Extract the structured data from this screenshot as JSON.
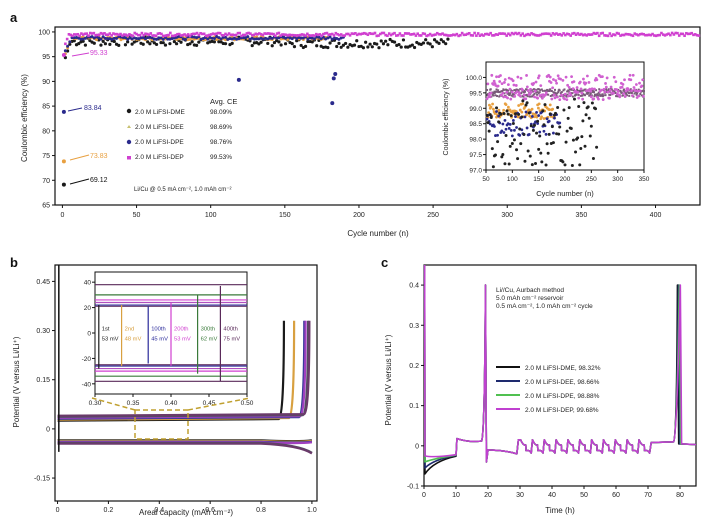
{
  "panels": {
    "a": {
      "letter": "a"
    },
    "b": {
      "letter": "b"
    },
    "c": {
      "letter": "c"
    }
  },
  "chart_data": [
    {
      "panel": "a",
      "type": "scatter",
      "title": "",
      "xlabel": "Cycle number (n)",
      "ylabel": "Coulombic efficiency (%)",
      "xlim": [
        -5,
        430
      ],
      "ylim": [
        65,
        101
      ],
      "xticks": [
        0,
        50,
        100,
        150,
        200,
        250,
        300,
        350,
        400
      ],
      "yticks": [
        65,
        70,
        75,
        80,
        85,
        90,
        95,
        100
      ],
      "legend_title": "Avg. CE",
      "series": [
        {
          "name": "2.0 M LiFSI-DME",
          "color": "#1a1a1a",
          "avg_ce": "98.09%",
          "first_cycle_ce": 69.12,
          "first_label": "69.12",
          "range_cycles": [
            0,
            260
          ]
        },
        {
          "name": "2.0 M LiFSI-DEE",
          "color": "#e8a040",
          "avg_ce": "98.69%",
          "first_cycle_ce": 73.83,
          "first_label": "73.83",
          "range_cycles": [
            0,
            180
          ]
        },
        {
          "name": "2.0 M LiFSI-DPE",
          "color": "#2a2a8c",
          "avg_ce": "98.76%",
          "first_cycle_ce": 83.84,
          "first_label": "83.84",
          "range_cycles": [
            0,
            190
          ]
        },
        {
          "name": "2.0 M LiFSI-DEP",
          "color": "#d040d0",
          "avg_ce": "99.53%",
          "first_cycle_ce": 95.33,
          "first_label": "95.33",
          "range_cycles": [
            0,
            430
          ]
        }
      ],
      "outliers": [
        {
          "series": "2.0 M LiFSI-DPE",
          "x": 119,
          "y": 90.3
        },
        {
          "series": "2.0 M LiFSI-DPE",
          "x": 182,
          "y": 85.6
        },
        {
          "series": "2.0 M LiFSI-DPE",
          "x": 183,
          "y": 90.6
        },
        {
          "series": "2.0 M LiFSI-DPE",
          "x": 184,
          "y": 91.5
        }
      ],
      "annotation": "Li/Cu @ 0.5 mA cm⁻², 1.0 mAh cm⁻²",
      "inset": {
        "xlabel": "Cycle number (n)",
        "ylabel": "Coulombic efficiency (%)",
        "xlim": [
          50,
          350
        ],
        "ylim": [
          97.0,
          100.5
        ],
        "xticks": [
          50,
          100,
          150,
          200,
          250,
          300,
          350
        ],
        "yticks": [
          "97.0",
          "97.5",
          "98.0",
          "98.5",
          "99.0",
          "99.5",
          "100.0"
        ]
      }
    },
    {
      "panel": "b",
      "type": "line",
      "xlabel": "Areal capacity (mAh cm⁻²)",
      "ylabel": "Potential (V versus Li/Li⁺)",
      "xlim": [
        -0.01,
        1.02
      ],
      "ylim": [
        -0.22,
        0.5
      ],
      "xticks": [
        "0",
        "0.2",
        "0.4",
        "0.6",
        "0.8",
        "1.0"
      ],
      "yticks": [
        "-0.15",
        "0",
        "0.15",
        "0.30",
        "0.45"
      ],
      "plating_potential_V": 0.03,
      "stripping_potential_V": -0.035,
      "inset": {
        "xlim": [
          0.3,
          0.5
        ],
        "ylim_mV": [
          -48,
          48
        ],
        "xticks": [
          "0.30",
          "0.35",
          "0.40",
          "0.45",
          "0.50"
        ],
        "yticks": [
          "40",
          "20",
          "0",
          "-20",
          "-40"
        ],
        "overpotentials": [
          {
            "cycle": "1st",
            "value": "53 mV",
            "color": "#1a1a1a"
          },
          {
            "cycle": "2nd",
            "value": "48 mV",
            "color": "#d8a040"
          },
          {
            "cycle": "100th",
            "value": "45 mV",
            "color": "#2a2a9a"
          },
          {
            "cycle": "200th",
            "value": "53 mV",
            "color": "#d040d0"
          },
          {
            "cycle": "300th",
            "value": "62 mV",
            "color": "#3a7a3a"
          },
          {
            "cycle": "400th",
            "value": "75 mV",
            "color": "#5a2a5a"
          }
        ]
      }
    },
    {
      "panel": "c",
      "type": "line",
      "xlabel": "Time (h)",
      "ylabel": "Potential (V versus Li/Li⁺)",
      "xlim": [
        0,
        85
      ],
      "ylim": [
        -0.1,
        0.45
      ],
      "xticks": [
        "0",
        "10",
        "20",
        "30",
        "40",
        "50",
        "60",
        "70",
        "80"
      ],
      "yticks": [
        "-0.1",
        "0",
        "0.1",
        "0.2",
        "0.3",
        "0.4"
      ],
      "annotation_lines": [
        "Li//Cu, Aurbach method",
        "5.0 mAh cm⁻² reservoir",
        "0.5 mA cm⁻², 1.0 mAh cm⁻² cycle"
      ],
      "series": [
        {
          "name": "2.0 M LiFSI-DME, 98.32%",
          "color": "#111111"
        },
        {
          "name": "2.0 M LiFSI-DEE, 98.66%",
          "color": "#1e2a6e"
        },
        {
          "name": "2.0 M LiFSI-DPE, 98.88%",
          "color": "#50c050"
        },
        {
          "name": "2.0 M LiFSI-DEP, 99.68%",
          "color": "#c040d0"
        }
      ]
    }
  ],
  "labels": {
    "a_xlabel": "Cycle number (n)",
    "a_ylabel": "Coulombic efficiency (%)",
    "a_legend_title": "Avg. CE",
    "a_leg0": "2.0 M LiFSI-DME",
    "a_ce0": "98.09%",
    "a_leg1": "2.0 M LiFSI-DEE",
    "a_ce1": "98.69%",
    "a_leg2": "2.0 M LiFSI-DPE",
    "a_ce2": "98.76%",
    "a_leg3": "2.0 M LiFSI-DEP",
    "a_ce3": "99.53%",
    "a_ann0": "95.33",
    "a_ann1": "83.84",
    "a_ann2": "73.83",
    "a_ann3": "69.12",
    "a_cond": "Li/Cu @ 0.5 mA cm⁻², 1.0 mAh cm⁻²",
    "a_inset_xlabel": "Cycle number (n)",
    "a_inset_ylabel": "Coulombic efficiency (%)",
    "b_xlabel": "Areal capacity (mAh cm⁻²)",
    "b_ylabel": "Potential (V versus Li/Li⁺)",
    "c_xlabel": "Time (h)",
    "c_ylabel": "Potential (V versus Li/Li⁺)",
    "c_ann0": "Li//Cu, Aurbach method",
    "c_ann1": "5.0 mAh cm⁻² reservoir",
    "c_ann2": "0.5 mA cm⁻², 1.0 mAh cm⁻² cycle",
    "c_leg0": "2.0 M LiFSI-DME, 98.32%",
    "c_leg1": "2.0 M LiFSI-DEE, 98.66%",
    "c_leg2": "2.0 M LiFSI-DPE, 98.88%",
    "c_leg3": "2.0 M LiFSI-DEP, 99.68%"
  }
}
